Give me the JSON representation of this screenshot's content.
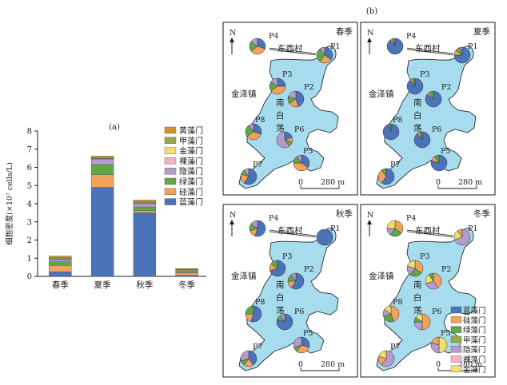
{
  "figure": {
    "panel_a_label": "(a)",
    "panel_b_label": "(b)"
  },
  "colors": {
    "蓝藻门": "#4a73b8",
    "硅藻门": "#f2a25b",
    "绿藻门": "#5fa84a",
    "甲藻门": "#9aa84e",
    "隐藻门": "#b59ccc",
    "裸藻门": "#f6b0c8",
    "金藻门": "#f3e06a",
    "黄藻门": "#d7922f",
    "lake": "#a7dcee",
    "lake_edge": "#2b2b2b"
  },
  "chart_data": {
    "type": "bar",
    "stacked": true,
    "ylabel": "细胞密度(×10⁷ cells/L)",
    "ylim": [
      0,
      8
    ],
    "yticks": [
      0,
      1,
      2,
      3,
      4,
      5,
      6,
      7,
      8
    ],
    "grid": false,
    "legend_position": "top-right",
    "categories": [
      "春季",
      "夏季",
      "秋季",
      "冬季"
    ],
    "series": [
      {
        "name": "蓝藻门",
        "values": [
          0.25,
          4.9,
          3.5,
          0.06
        ]
      },
      {
        "name": "硅藻门",
        "values": [
          0.35,
          0.7,
          0.12,
          0.14
        ]
      },
      {
        "name": "绿藻门",
        "values": [
          0.2,
          0.55,
          0.2,
          0.04
        ]
      },
      {
        "name": "隐藻门",
        "values": [
          0.12,
          0.3,
          0.18,
          0.06
        ]
      },
      {
        "name": "裸藻门",
        "values": [
          0.03,
          0.02,
          0.03,
          0.02
        ]
      },
      {
        "name": "金藻门",
        "values": [
          0.02,
          0.02,
          0.02,
          0.04
        ]
      },
      {
        "name": "甲藻门",
        "values": [
          0.05,
          0.05,
          0.05,
          0.02
        ]
      },
      {
        "name": "黄藻门",
        "values": [
          0.1,
          0.08,
          0.1,
          0.05
        ]
      }
    ],
    "legend_order": [
      "黄藻门",
      "甲藻门",
      "金藻门",
      "裸藻门",
      "隐藻门",
      "绿藻门",
      "硅藻门",
      "蓝藻门"
    ],
    "maps": [
      {
        "season": "春季",
        "pies": [
          {
            "site": "P4",
            "values": {
              "蓝藻门": 0.3,
              "硅藻门": 0.35,
              "绿藻门": 0.2,
              "隐藻门": 0.15
            }
          },
          {
            "site": "P1",
            "values": {
              "蓝藻门": 0.35,
              "硅藻门": 0.25,
              "绿藻门": 0.3,
              "隐藻门": 0.1
            }
          },
          {
            "site": "P3",
            "values": {
              "蓝藻门": 0.25,
              "硅藻门": 0.4,
              "绿藻门": 0.2,
              "隐藻门": 0.15
            }
          },
          {
            "site": "P2",
            "values": {
              "蓝藻门": 0.45,
              "硅藻门": 0.2,
              "绿藻门": 0.15,
              "隐藻门": 0.2
            }
          },
          {
            "site": "P8",
            "values": {
              "蓝藻门": 0.3,
              "硅藻门": 0.35,
              "绿藻门": 0.25,
              "隐藻门": 0.1
            }
          },
          {
            "site": "P6",
            "values": {
              "蓝藻门": 0.2,
              "硅藻门": 0.1,
              "绿藻门": 0.1,
              "隐藻门": 0.6
            }
          },
          {
            "site": "P5",
            "values": {
              "蓝藻门": 0.35,
              "硅藻门": 0.4,
              "绿藻门": 0.15,
              "隐藻门": 0.1
            }
          },
          {
            "site": "P7",
            "values": {
              "蓝藻门": 0.6,
              "硅藻门": 0.2,
              "绿藻门": 0.1,
              "隐藻门": 0.1
            }
          }
        ]
      },
      {
        "season": "夏季",
        "pies": [
          {
            "site": "P4",
            "values": {
              "蓝藻门": 0.9,
              "硅藻门": 0.04,
              "绿藻门": 0.03,
              "隐藻门": 0.03
            }
          },
          {
            "site": "P1",
            "values": {
              "蓝藻门": 0.75,
              "硅藻门": 0.1,
              "绿藻门": 0.1,
              "隐藻门": 0.05
            }
          },
          {
            "site": "P3",
            "values": {
              "蓝藻门": 0.9,
              "硅藻门": 0.05,
              "绿藻门": 0.05
            }
          },
          {
            "site": "P2",
            "values": {
              "蓝藻门": 0.85,
              "硅藻门": 0.05,
              "绿藻门": 0.1
            }
          },
          {
            "site": "P8",
            "values": {
              "蓝藻门": 0.95,
              "绿藻门": 0.05
            }
          },
          {
            "site": "P6",
            "values": {
              "蓝藻门": 0.9,
              "硅藻门": 0.05,
              "绿藻门": 0.05
            }
          },
          {
            "site": "P5",
            "values": {
              "蓝藻门": 0.8,
              "硅藻门": 0.1,
              "绿藻门": 0.1
            }
          },
          {
            "site": "P7",
            "values": {
              "蓝藻门": 0.6,
              "硅藻门": 0.3,
              "绿藻门": 0.1
            }
          }
        ]
      },
      {
        "season": "秋季",
        "pies": [
          {
            "site": "P4",
            "values": {
              "蓝藻门": 0.55,
              "硅藻门": 0.15,
              "绿藻门": 0.15,
              "隐藻门": 0.15
            }
          },
          {
            "site": "P1",
            "values": {
              "蓝藻门": 1.0
            }
          },
          {
            "site": "P3",
            "values": {
              "蓝藻门": 0.7,
              "硅藻门": 0.15,
              "绿藻门": 0.15
            }
          },
          {
            "site": "P2",
            "values": {
              "蓝藻门": 0.6,
              "硅藻门": 0.15,
              "绿藻门": 0.15,
              "隐藻门": 0.1
            }
          },
          {
            "site": "P8",
            "values": {
              "蓝藻门": 0.55,
              "硅藻门": 0.2,
              "绿藻门": 0.25
            }
          },
          {
            "site": "P6",
            "values": {
              "蓝藻门": 0.8,
              "绿藻门": 0.1,
              "隐藻门": 0.1
            }
          },
          {
            "site": "P5",
            "values": {
              "蓝藻门": 0.3,
              "硅藻门": 0.3,
              "绿藻门": 0.1,
              "隐藻门": 0.3
            }
          },
          {
            "site": "P7",
            "values": {
              "蓝藻门": 0.4,
              "硅藻门": 0.2,
              "绿藻门": 0.1,
              "隐藻门": 0.3
            }
          }
        ]
      },
      {
        "season": "冬季",
        "pies": [
          {
            "site": "P4",
            "values": {
              "硅藻门": 0.35,
              "绿藻门": 0.25,
              "隐藻门": 0.15,
              "金藻门": 0.25
            }
          },
          {
            "site": "P1",
            "values": {
              "隐藻门": 0.7,
              "金藻门": 0.2,
              "硅藻门": 0.1
            }
          },
          {
            "site": "P3",
            "values": {
              "硅藻门": 0.35,
              "绿藻门": 0.25,
              "隐藻门": 0.2,
              "金藻门": 0.2
            }
          },
          {
            "site": "P2",
            "values": {
              "硅藻门": 0.4,
              "隐藻门": 0.3,
              "金藻门": 0.2,
              "绿藻门": 0.1
            }
          },
          {
            "site": "P8",
            "values": {
              "硅藻门": 0.45,
              "绿藻门": 0.25,
              "隐藻门": 0.15,
              "金藻门": 0.15
            }
          },
          {
            "site": "P6",
            "values": {
              "硅藻门": 0.5,
              "隐藻门": 0.25,
              "绿藻门": 0.1,
              "金藻门": 0.15
            }
          },
          {
            "site": "P5",
            "values": {
              "金藻门": 0.5,
              "隐藻门": 0.3,
              "硅藻门": 0.2
            }
          },
          {
            "site": "P7",
            "values": {
              "隐藻门": 0.6,
              "硅藻门": 0.2,
              "金藻门": 0.2
            }
          }
        ]
      }
    ]
  },
  "maps_text": {
    "north": "N",
    "village": "东西村",
    "town": "金泽镇",
    "lake_name": [
      "南",
      "白",
      "荡"
    ],
    "scale_zero": "0",
    "scale_value": "280 m"
  },
  "map_legend_order": [
    "蓝藻门",
    "硅藻门",
    "绿藻门",
    "甲藻门",
    "隐藻门",
    "裸藻门",
    "金藻门"
  ]
}
